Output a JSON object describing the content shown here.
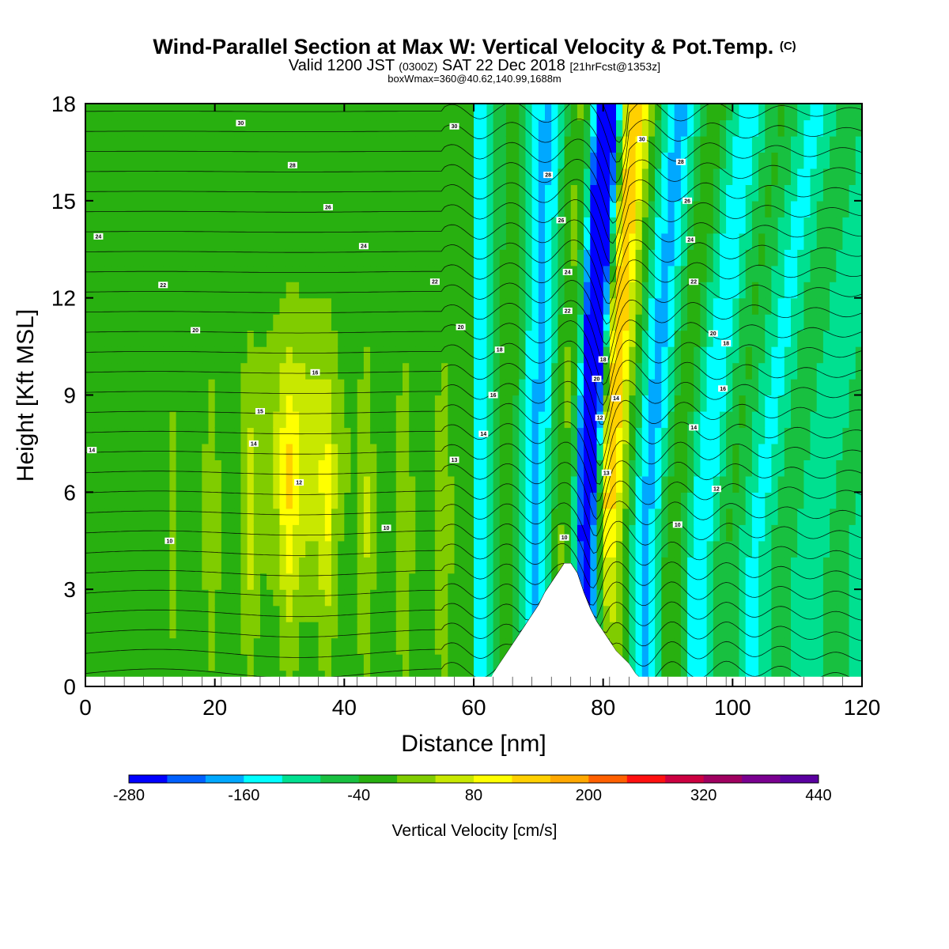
{
  "header": {
    "title": "Wind-Parallel Section at Max W: Vertical Velocity & Pot.Temp.",
    "title_mark": "(C)",
    "subtitle_a": "Valid 1200 JST",
    "subtitle_b": "(0300Z)",
    "subtitle_c": "SAT 22 Dec 2018",
    "subtitle_d": "[21hrFcst@1353z]",
    "subtitle2": "boxWmax=360@40.62,140.99,1688m"
  },
  "chart_data": {
    "type": "heatmap",
    "xlabel": "Distance [nm]",
    "ylabel": "Height [Kft MSL]",
    "xlim": [
      0,
      120
    ],
    "ylim": [
      0,
      18
    ],
    "x_ticks": [
      "0",
      "20",
      "40",
      "60",
      "80",
      "100",
      "120"
    ],
    "y_ticks": [
      "0",
      "3",
      "6",
      "9",
      "12",
      "15",
      "18"
    ],
    "grid": false,
    "colorbar": {
      "title": "Vertical Velocity [cm/s]",
      "labels": [
        "-280",
        "-160",
        "-40",
        "80",
        "200",
        "320",
        "440"
      ],
      "levels": [
        -280,
        -240,
        -200,
        -160,
        -120,
        -80,
        -40,
        0,
        40,
        80,
        120,
        160,
        200,
        240,
        280,
        320,
        360,
        400,
        440
      ],
      "colors": [
        "#0000ff",
        "#0060ff",
        "#00a8ff",
        "#00ffff",
        "#00e090",
        "#18c040",
        "#28b010",
        "#80cc00",
        "#c8e800",
        "#ffff00",
        "#ffd000",
        "#ffa800",
        "#ff6000",
        "#ff1010",
        "#cc0040",
        "#a00060",
        "#7a0090",
        "#5a00a0"
      ]
    },
    "terrain_profile": [
      [
        62,
        0
      ],
      [
        63,
        0.4
      ],
      [
        64,
        0.7
      ],
      [
        65,
        1.0
      ],
      [
        66,
        1.3
      ],
      [
        67,
        1.6
      ],
      [
        68,
        1.9
      ],
      [
        69,
        2.2
      ],
      [
        70,
        2.5
      ],
      [
        71,
        2.9
      ],
      [
        72,
        3.2
      ],
      [
        73,
        3.5
      ],
      [
        74,
        3.8
      ],
      [
        75,
        3.8
      ],
      [
        76,
        3.5
      ],
      [
        77,
        2.9
      ],
      [
        78,
        2.4
      ],
      [
        79,
        2.0
      ],
      [
        80,
        1.7
      ],
      [
        81,
        1.4
      ],
      [
        82,
        1.1
      ],
      [
        83,
        0.9
      ],
      [
        84,
        0.7
      ],
      [
        85,
        0.4
      ],
      [
        86,
        0.2
      ],
      [
        87,
        0
      ]
    ],
    "theta_labels": [
      {
        "text": "30",
        "x": 24,
        "y": 17.4
      },
      {
        "text": "28",
        "x": 32,
        "y": 16.1
      },
      {
        "text": "26",
        "x": 37.5,
        "y": 14.8
      },
      {
        "text": "24",
        "x": 2,
        "y": 13.9
      },
      {
        "text": "24",
        "x": 43,
        "y": 13.6
      },
      {
        "text": "22",
        "x": 12,
        "y": 12.4
      },
      {
        "text": "22",
        "x": 54,
        "y": 12.5
      },
      {
        "text": "20",
        "x": 17,
        "y": 11.0
      },
      {
        "text": "20",
        "x": 58,
        "y": 11.1
      },
      {
        "text": "18",
        "x": 64,
        "y": 10.4
      },
      {
        "text": "16",
        "x": 35.5,
        "y": 9.7
      },
      {
        "text": "16",
        "x": 63,
        "y": 9.0
      },
      {
        "text": "15",
        "x": 27,
        "y": 8.5
      },
      {
        "text": "14",
        "x": 26,
        "y": 7.5
      },
      {
        "text": "14",
        "x": 1,
        "y": 7.3
      },
      {
        "text": "14",
        "x": 61.5,
        "y": 7.8
      },
      {
        "text": "13",
        "x": 57,
        "y": 7.0
      },
      {
        "text": "12",
        "x": 33,
        "y": 6.3
      },
      {
        "text": "10",
        "x": 13,
        "y": 4.5
      },
      {
        "text": "10",
        "x": 46.5,
        "y": 4.9
      },
      {
        "text": "10",
        "x": 74,
        "y": 4.6
      },
      {
        "text": "30",
        "x": 57,
        "y": 17.3
      },
      {
        "text": "28",
        "x": 71.5,
        "y": 15.8
      },
      {
        "text": "26",
        "x": 73.5,
        "y": 14.4
      },
      {
        "text": "24",
        "x": 74.5,
        "y": 12.8
      },
      {
        "text": "22",
        "x": 74.5,
        "y": 11.6
      },
      {
        "text": "20",
        "x": 79,
        "y": 9.5
      },
      {
        "text": "18",
        "x": 80,
        "y": 10.1
      },
      {
        "text": "14",
        "x": 82,
        "y": 8.9
      },
      {
        "text": "12",
        "x": 79.5,
        "y": 8.3
      },
      {
        "text": "13",
        "x": 80.5,
        "y": 6.6
      },
      {
        "text": "30",
        "x": 86,
        "y": 16.9
      },
      {
        "text": "28",
        "x": 92,
        "y": 16.2
      },
      {
        "text": "26",
        "x": 93,
        "y": 15.0
      },
      {
        "text": "24",
        "x": 93.5,
        "y": 13.8
      },
      {
        "text": "22",
        "x": 94,
        "y": 12.5
      },
      {
        "text": "20",
        "x": 97,
        "y": 10.9
      },
      {
        "text": "18",
        "x": 99,
        "y": 10.6
      },
      {
        "text": "16",
        "x": 98.5,
        "y": 9.2
      },
      {
        "text": "14",
        "x": 94,
        "y": 8.0
      },
      {
        "text": "12",
        "x": 97.5,
        "y": 6.1
      },
      {
        "text": "10",
        "x": 91.5,
        "y": 5.0
      }
    ]
  }
}
